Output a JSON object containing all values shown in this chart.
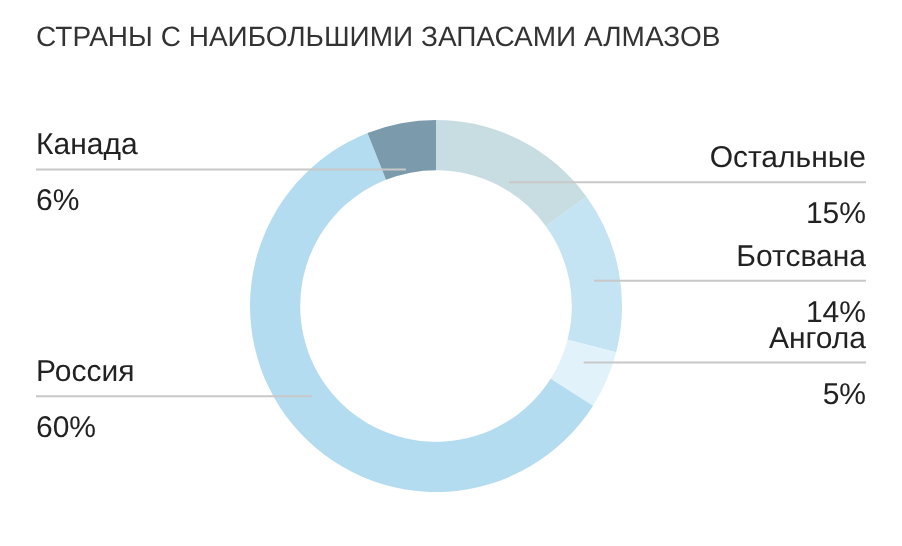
{
  "chart_data": {
    "type": "donut",
    "title": "СТРАНЫ С НАИБОЛЬШИМИ ЗАПАСАМИ АЛМАЗОВ",
    "categories": [
      "Остальные",
      "Ботсвана",
      "Ангола",
      "Россия",
      "Канада"
    ],
    "values": [
      15,
      14,
      5,
      60,
      6
    ],
    "value_labels": [
      "15%",
      "14%",
      "5%",
      "60%",
      "6%"
    ],
    "colors": [
      "#c8dde1",
      "#c4e3f3",
      "#e2f2fa",
      "#b4dcf0",
      "#7b9aac"
    ],
    "legend": false
  }
}
